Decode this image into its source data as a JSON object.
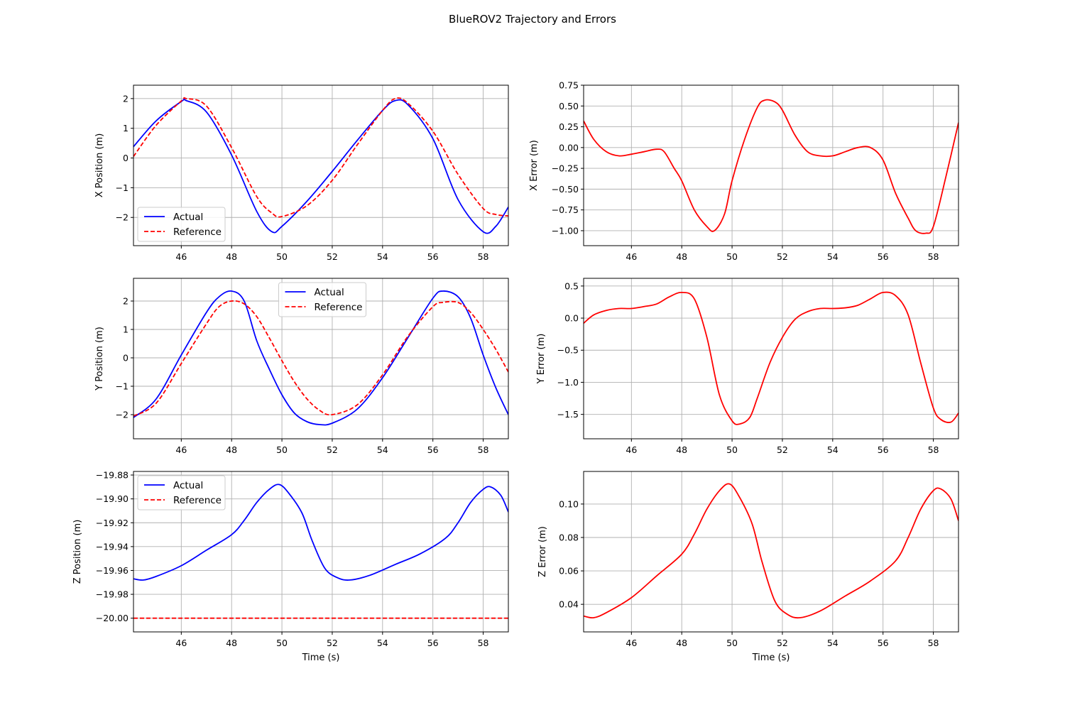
{
  "figure": {
    "title": "BlueROV2 Trajectory and Errors"
  },
  "colors": {
    "actual": "#0000ff",
    "reference": "#ff0000",
    "error": "#ff0000",
    "grid": "#b0b0b0"
  },
  "chart_data": [
    {
      "id": "x-position",
      "type": "line",
      "xlabel": "",
      "ylabel": "X Position (m)",
      "xlim": [
        44.1,
        59.0
      ],
      "ylim": [
        -2.95,
        2.45
      ],
      "xticks": [
        46,
        48,
        50,
        52,
        54,
        56,
        58
      ],
      "xtick_labels": [
        "46",
        "48",
        "50",
        "52",
        "54",
        "56",
        "58"
      ],
      "yticks": [
        -2,
        -1,
        0,
        1,
        2
      ],
      "ytick_labels": [
        "−2",
        "−1",
        "0",
        "1",
        "2"
      ],
      "grid": true,
      "legend": "lower-left",
      "x": [
        44.1,
        45.0,
        46.0,
        46.2,
        47.0,
        48.0,
        49.0,
        49.6,
        50.0,
        51.0,
        52.0,
        53.0,
        54.0,
        54.5,
        55.0,
        56.0,
        57.0,
        58.0,
        58.5,
        59.0
      ],
      "series": [
        {
          "name": "Actual",
          "color": "#0000ff",
          "style": "solid",
          "values": [
            0.38,
            1.25,
            1.9,
            1.93,
            1.55,
            0.1,
            -1.8,
            -2.48,
            -2.3,
            -1.45,
            -0.45,
            0.6,
            1.6,
            1.93,
            1.8,
            0.65,
            -1.4,
            -2.48,
            -2.3,
            -1.65
          ]
        },
        {
          "name": "Reference",
          "color": "#ff0000",
          "style": "dashed",
          "values": [
            0.05,
            1.1,
            1.92,
            2.0,
            1.75,
            0.35,
            -1.3,
            -1.85,
            -1.97,
            -1.6,
            -0.75,
            0.45,
            1.6,
            2.0,
            1.85,
            0.9,
            -0.55,
            -1.7,
            -1.9,
            -1.95
          ]
        }
      ]
    },
    {
      "id": "x-error",
      "type": "line",
      "xlabel": "",
      "ylabel": "X Error (m)",
      "xlim": [
        44.1,
        59.0
      ],
      "ylim": [
        -1.18,
        0.75
      ],
      "xticks": [
        46,
        48,
        50,
        52,
        54,
        56,
        58
      ],
      "xtick_labels": [
        "46",
        "48",
        "50",
        "52",
        "54",
        "56",
        "58"
      ],
      "yticks": [
        -1.0,
        -0.75,
        -0.5,
        -0.25,
        0.0,
        0.25,
        0.5,
        0.75
      ],
      "ytick_labels": [
        "−1.00",
        "−0.75",
        "−0.50",
        "−0.25",
        "0.00",
        "0.25",
        "0.50",
        "0.75"
      ],
      "grid": true,
      "legend": "none",
      "x": [
        44.1,
        44.5,
        45.0,
        45.5,
        46.0,
        46.5,
        47.0,
        47.3,
        47.7,
        48.0,
        48.5,
        49.0,
        49.3,
        49.7,
        50.0,
        50.5,
        51.0,
        51.3,
        51.7,
        52.0,
        52.5,
        53.0,
        53.5,
        54.0,
        54.5,
        55.0,
        55.5,
        56.0,
        56.5,
        57.0,
        57.3,
        57.7,
        58.0,
        58.5,
        59.0
      ],
      "series": [
        {
          "name": "",
          "color": "#ff0000",
          "style": "solid",
          "values": [
            0.32,
            0.1,
            -0.05,
            -0.1,
            -0.08,
            -0.05,
            -0.02,
            -0.05,
            -0.25,
            -0.4,
            -0.75,
            -0.95,
            -1.0,
            -0.8,
            -0.4,
            0.1,
            0.48,
            0.57,
            0.55,
            0.45,
            0.15,
            -0.05,
            -0.1,
            -0.1,
            -0.05,
            0.0,
            0.0,
            -0.15,
            -0.55,
            -0.85,
            -1.0,
            -1.03,
            -0.95,
            -0.35,
            0.3
          ]
        }
      ]
    },
    {
      "id": "y-position",
      "type": "line",
      "xlabel": "",
      "ylabel": "Y Position (m)",
      "xlim": [
        44.1,
        59.0
      ],
      "ylim": [
        -2.85,
        2.8
      ],
      "xticks": [
        46,
        48,
        50,
        52,
        54,
        56,
        58
      ],
      "xtick_labels": [
        "46",
        "48",
        "50",
        "52",
        "54",
        "56",
        "58"
      ],
      "yticks": [
        -2,
        -1,
        0,
        1,
        2
      ],
      "ytick_labels": [
        "−2",
        "−1",
        "0",
        "1",
        "2"
      ],
      "grid": true,
      "legend": "upper-center",
      "x": [
        44.1,
        45.0,
        46.0,
        47.0,
        47.5,
        48.0,
        48.5,
        49.0,
        49.5,
        50.0,
        50.5,
        51.0,
        51.5,
        52.0,
        53.0,
        54.0,
        55.0,
        56.0,
        56.4,
        57.0,
        57.5,
        58.0,
        58.5,
        59.0
      ],
      "series": [
        {
          "name": "Actual",
          "color": "#0000ff",
          "style": "solid",
          "values": [
            -2.1,
            -1.45,
            0.1,
            1.6,
            2.15,
            2.35,
            2.0,
            0.6,
            -0.4,
            -1.3,
            -1.95,
            -2.25,
            -2.35,
            -2.3,
            -1.8,
            -0.7,
            0.7,
            2.1,
            2.35,
            2.15,
            1.4,
            0.1,
            -1.05,
            -2.0
          ]
        },
        {
          "name": "Reference",
          "color": "#ff0000",
          "style": "dashed",
          "values": [
            -2.05,
            -1.6,
            -0.2,
            1.2,
            1.8,
            2.0,
            1.9,
            1.45,
            0.7,
            -0.1,
            -0.85,
            -1.45,
            -1.85,
            -2.0,
            -1.65,
            -0.6,
            0.75,
            1.8,
            1.95,
            1.95,
            1.6,
            1.0,
            0.3,
            -0.5
          ]
        }
      ]
    },
    {
      "id": "y-error",
      "type": "line",
      "xlabel": "",
      "ylabel": "Y Error (m)",
      "xlim": [
        44.1,
        59.0
      ],
      "ylim": [
        -1.88,
        0.62
      ],
      "xticks": [
        46,
        48,
        50,
        52,
        54,
        56,
        58
      ],
      "xtick_labels": [
        "46",
        "48",
        "50",
        "52",
        "54",
        "56",
        "58"
      ],
      "yticks": [
        -1.5,
        -1.0,
        -0.5,
        0.0,
        0.5
      ],
      "ytick_labels": [
        "−1.5",
        "−1.0",
        "−0.5",
        "0.0",
        "0.5"
      ],
      "grid": true,
      "legend": "none",
      "x": [
        44.1,
        44.5,
        45.0,
        45.5,
        46.0,
        46.5,
        47.0,
        47.5,
        48.0,
        48.5,
        49.0,
        49.5,
        50.0,
        50.3,
        50.7,
        51.0,
        51.5,
        52.0,
        52.5,
        53.0,
        53.5,
        54.0,
        54.5,
        55.0,
        55.5,
        56.0,
        56.5,
        57.0,
        57.5,
        58.0,
        58.3,
        58.7,
        59.0
      ],
      "series": [
        {
          "name": "",
          "color": "#ff0000",
          "style": "solid",
          "values": [
            -0.08,
            0.05,
            0.12,
            0.15,
            0.15,
            0.18,
            0.22,
            0.33,
            0.4,
            0.3,
            -0.3,
            -1.2,
            -1.6,
            -1.65,
            -1.55,
            -1.25,
            -0.7,
            -0.3,
            -0.02,
            0.1,
            0.15,
            0.15,
            0.16,
            0.2,
            0.3,
            0.4,
            0.35,
            0.05,
            -0.7,
            -1.4,
            -1.58,
            -1.62,
            -1.48
          ]
        }
      ]
    },
    {
      "id": "z-position",
      "type": "line",
      "xlabel": "Time (s)",
      "ylabel": "Z Position (m)",
      "xlim": [
        44.1,
        59.0
      ],
      "ylim": [
        -20.0115,
        -19.877
      ],
      "xticks": [
        46,
        48,
        50,
        52,
        54,
        56,
        58
      ],
      "xtick_labels": [
        "46",
        "48",
        "50",
        "52",
        "54",
        "56",
        "58"
      ],
      "yticks": [
        -20.0,
        -19.98,
        -19.96,
        -19.94,
        -19.92,
        -19.9,
        -19.88
      ],
      "ytick_labels": [
        "−20.00",
        "−19.98",
        "−19.96",
        "−19.94",
        "−19.92",
        "−19.90",
        "−19.88"
      ],
      "grid": true,
      "legend": "upper-left",
      "x": [
        44.1,
        44.5,
        45.0,
        46.0,
        47.0,
        48.0,
        48.5,
        49.0,
        49.5,
        49.9,
        50.3,
        50.8,
        51.2,
        51.7,
        52.2,
        52.7,
        53.5,
        54.5,
        55.5,
        56.5,
        57.0,
        57.5,
        58.0,
        58.3,
        58.7,
        59.0
      ],
      "series": [
        {
          "name": "Actual",
          "color": "#0000ff",
          "style": "solid",
          "values": [
            -19.967,
            -19.968,
            -19.965,
            -19.956,
            -19.943,
            -19.93,
            -19.918,
            -19.903,
            -19.892,
            -19.888,
            -19.896,
            -19.912,
            -19.935,
            -19.958,
            -19.966,
            -19.968,
            -19.964,
            -19.955,
            -19.946,
            -19.933,
            -19.92,
            -19.903,
            -19.892,
            -19.89,
            -19.897,
            -19.911
          ]
        },
        {
          "name": "Reference",
          "color": "#ff0000",
          "style": "dashed",
          "values": [
            -20.0,
            -20.0,
            -20.0,
            -20.0,
            -20.0,
            -20.0,
            -20.0,
            -20.0,
            -20.0,
            -20.0,
            -20.0,
            -20.0,
            -20.0,
            -20.0,
            -20.0,
            -20.0,
            -20.0,
            -20.0,
            -20.0,
            -20.0,
            -20.0,
            -20.0,
            -20.0,
            -20.0,
            -20.0,
            -20.0
          ]
        }
      ]
    },
    {
      "id": "z-error",
      "type": "line",
      "xlabel": "Time (s)",
      "ylabel": "Z Error (m)",
      "xlim": [
        44.1,
        59.0
      ],
      "ylim": [
        0.0235,
        0.1195
      ],
      "xticks": [
        46,
        48,
        50,
        52,
        54,
        56,
        58
      ],
      "xtick_labels": [
        "46",
        "48",
        "50",
        "52",
        "54",
        "56",
        "58"
      ],
      "yticks": [
        0.04,
        0.06,
        0.08,
        0.1
      ],
      "ytick_labels": [
        "0.04",
        "0.06",
        "0.08",
        "0.10"
      ],
      "grid": true,
      "legend": "none",
      "x": [
        44.1,
        44.5,
        45.0,
        46.0,
        47.0,
        48.0,
        48.5,
        49.0,
        49.5,
        49.9,
        50.3,
        50.8,
        51.2,
        51.7,
        52.2,
        52.7,
        53.5,
        54.5,
        55.5,
        56.5,
        57.0,
        57.5,
        58.0,
        58.3,
        58.7,
        59.0
      ],
      "series": [
        {
          "name": "",
          "color": "#ff0000",
          "style": "solid",
          "values": [
            0.033,
            0.032,
            0.035,
            0.044,
            0.057,
            0.07,
            0.082,
            0.097,
            0.108,
            0.112,
            0.104,
            0.088,
            0.065,
            0.042,
            0.034,
            0.032,
            0.036,
            0.045,
            0.054,
            0.066,
            0.08,
            0.097,
            0.108,
            0.109,
            0.103,
            0.09
          ]
        }
      ]
    }
  ]
}
